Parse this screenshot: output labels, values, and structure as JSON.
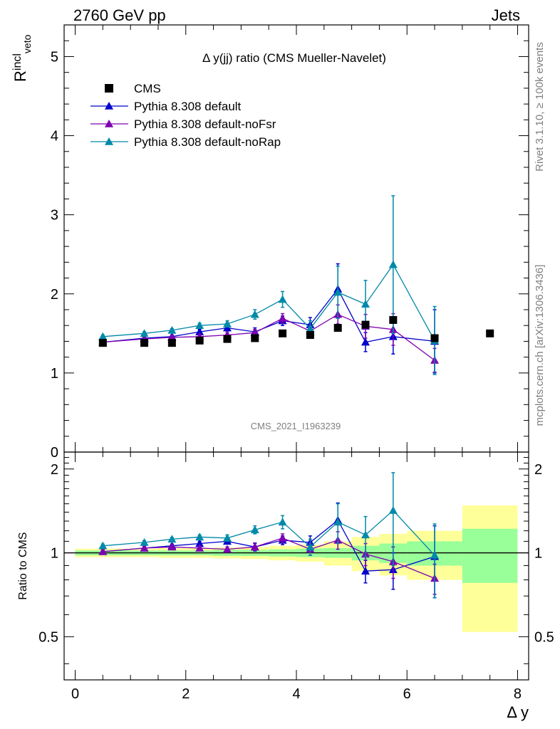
{
  "header": {
    "left_label": "2760 GeV pp",
    "right_label": "Jets",
    "side_label_top": "Rivet 3.1.10, ≥ 100k events",
    "side_label_bottom": "mcplots.cern.ch [arXiv:1306.3436]",
    "watermark": "CMS_2021_I1963239"
  },
  "colors": {
    "cms": "#000000",
    "default": "#0000cc",
    "noFsr": "#7f00b2",
    "noRap": "#0089a8",
    "band_inner": "#99ff99",
    "band_outer": "#ffff99"
  },
  "chart_data": [
    {
      "type": "scatter",
      "title": "Δ y(jj) ratio (CMS Mueller-Navelet)",
      "ylabel_main": "R",
      "ylabel_sup": "incl",
      "ylabel_sub": "veto",
      "xlim": [
        -0.2,
        8.2
      ],
      "ylim": [
        0,
        5.4
      ],
      "yticks": [
        {
          "v": 0,
          "label": "0"
        },
        {
          "v": 1,
          "label": "1"
        },
        {
          "v": 2,
          "label": "2"
        },
        {
          "v": 3,
          "label": "3"
        },
        {
          "v": 4,
          "label": "4"
        },
        {
          "v": 5,
          "label": "5"
        }
      ],
      "legend_position": "top-left",
      "data_series": {
        "name": "CMS",
        "x": [
          0.5,
          1.25,
          1.75,
          2.25,
          2.75,
          3.25,
          3.75,
          4.25,
          4.75,
          5.25,
          5.75,
          6.5,
          7.5
        ],
        "y": [
          1.38,
          1.38,
          1.38,
          1.41,
          1.43,
          1.44,
          1.5,
          1.48,
          1.57,
          1.61,
          1.67,
          1.44,
          1.5
        ]
      },
      "series": [
        {
          "name": "Pythia 8.308 default",
          "color": "#0000cc",
          "x": [
            0.5,
            1.25,
            1.75,
            2.25,
            2.75,
            3.25,
            3.75,
            4.25,
            4.75,
            5.25,
            5.75,
            6.5
          ],
          "y": [
            1.39,
            1.44,
            1.46,
            1.52,
            1.57,
            1.52,
            1.66,
            1.61,
            2.06,
            1.39,
            1.46,
            1.4
          ],
          "err": [
            0.02,
            0.02,
            0.02,
            0.03,
            0.04,
            0.05,
            0.06,
            0.09,
            0.32,
            0.12,
            0.22,
            0.4
          ]
        },
        {
          "name": "Pythia 8.308 default-noFsr",
          "color": "#7f00b2",
          "x": [
            0.5,
            1.25,
            1.75,
            2.25,
            2.75,
            3.25,
            3.75,
            4.25,
            4.75,
            5.25,
            5.75,
            6.5
          ],
          "y": [
            1.39,
            1.43,
            1.45,
            1.46,
            1.48,
            1.51,
            1.69,
            1.53,
            1.74,
            1.59,
            1.55,
            1.16
          ],
          "err": [
            0.02,
            0.02,
            0.02,
            0.02,
            0.03,
            0.04,
            0.06,
            0.07,
            0.12,
            0.15,
            0.2,
            0.15
          ]
        },
        {
          "name": "Pythia 8.308 default-noRap",
          "color": "#0089a8",
          "x": [
            0.5,
            1.25,
            1.75,
            2.25,
            2.75,
            3.25,
            3.75,
            4.25,
            4.75,
            5.25,
            5.75,
            6.5
          ],
          "y": [
            1.46,
            1.5,
            1.54,
            1.6,
            1.62,
            1.74,
            1.93,
            1.56,
            2.02,
            1.87,
            2.37,
            1.41
          ],
          "err": [
            0.02,
            0.02,
            0.02,
            0.03,
            0.04,
            0.06,
            0.1,
            0.1,
            0.33,
            0.3,
            0.87,
            0.43
          ]
        }
      ]
    },
    {
      "type": "scatter",
      "ylabel": "Ratio to CMS",
      "xlabel": "Δ y",
      "xlim": [
        -0.2,
        8.2
      ],
      "ylim": [
        0.35,
        2.3
      ],
      "xticks": [
        {
          "v": 0,
          "label": "0"
        },
        {
          "v": 2,
          "label": "2"
        },
        {
          "v": 4,
          "label": "4"
        },
        {
          "v": 6,
          "label": "6"
        },
        {
          "v": 8,
          "label": "8"
        }
      ],
      "yticks": [
        {
          "v": 0.5,
          "label": "0.5"
        },
        {
          "v": 1,
          "label": "1"
        },
        {
          "v": 2,
          "label": "2"
        }
      ],
      "bands": {
        "edges": [
          0,
          1,
          1.5,
          2,
          2.5,
          3,
          3.5,
          4,
          4.5,
          5,
          5.5,
          6,
          7,
          8
        ],
        "inner": [
          0.02,
          0.02,
          0.02,
          0.02,
          0.025,
          0.025,
          0.03,
          0.035,
          0.04,
          0.06,
          0.08,
          0.1,
          0.22
        ],
        "outer": [
          0.035,
          0.035,
          0.04,
          0.04,
          0.045,
          0.05,
          0.06,
          0.07,
          0.1,
          0.14,
          0.17,
          0.2,
          0.48
        ]
      },
      "series": [
        {
          "name": "Pythia 8.308 default",
          "color": "#0000cc",
          "x": [
            0.5,
            1.25,
            1.75,
            2.25,
            2.75,
            3.25,
            3.75,
            4.25,
            4.75,
            5.25,
            5.75,
            6.5
          ],
          "y": [
            1.01,
            1.04,
            1.06,
            1.08,
            1.1,
            1.05,
            1.11,
            1.09,
            1.31,
            0.86,
            0.87,
            0.97
          ],
          "err": [
            0.015,
            0.015,
            0.015,
            0.02,
            0.025,
            0.035,
            0.04,
            0.06,
            0.2,
            0.08,
            0.13,
            0.28
          ]
        },
        {
          "name": "Pythia 8.308 default-noFsr",
          "color": "#7f00b2",
          "x": [
            0.5,
            1.25,
            1.75,
            2.25,
            2.75,
            3.25,
            3.75,
            4.25,
            4.75,
            5.25,
            5.75,
            6.5
          ],
          "y": [
            1.01,
            1.04,
            1.05,
            1.04,
            1.03,
            1.05,
            1.13,
            1.03,
            1.11,
            0.99,
            0.93,
            0.81
          ],
          "err": [
            0.015,
            0.015,
            0.015,
            0.015,
            0.02,
            0.03,
            0.04,
            0.05,
            0.08,
            0.09,
            0.12,
            0.1
          ]
        },
        {
          "name": "Pythia 8.308 default-noRap",
          "color": "#0089a8",
          "x": [
            0.5,
            1.25,
            1.75,
            2.25,
            2.75,
            3.25,
            3.75,
            4.25,
            4.75,
            5.25,
            5.75,
            6.5
          ],
          "y": [
            1.06,
            1.09,
            1.12,
            1.14,
            1.13,
            1.21,
            1.29,
            1.05,
            1.29,
            1.16,
            1.42,
            0.98
          ],
          "err": [
            0.015,
            0.015,
            0.015,
            0.02,
            0.03,
            0.04,
            0.07,
            0.07,
            0.21,
            0.19,
            0.52,
            0.29
          ]
        }
      ]
    }
  ]
}
